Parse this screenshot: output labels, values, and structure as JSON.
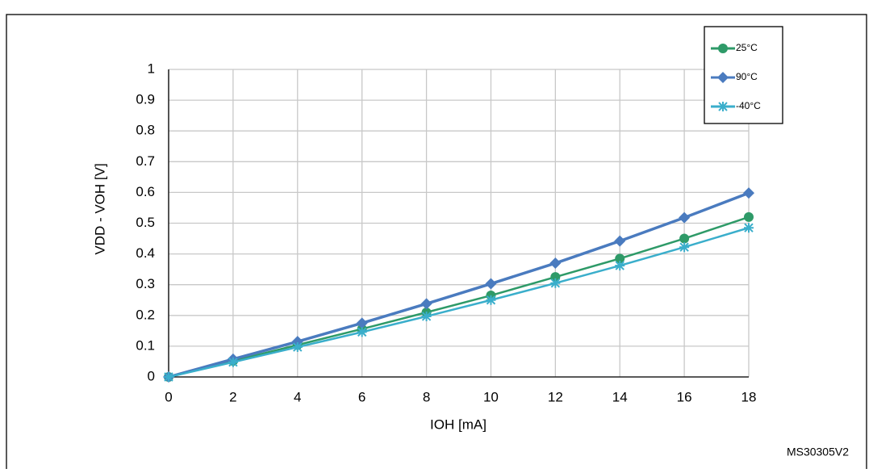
{
  "chart_data": {
    "type": "line",
    "xlabel": "IOH [mA]",
    "ylabel": "VDD - VOH [V]",
    "note": "MS30305V2",
    "x": [
      0,
      2,
      4,
      6,
      8,
      10,
      12,
      14,
      16,
      18
    ],
    "series": [
      {
        "name": "25°C",
        "color": "#2e9a68",
        "marker": "circle",
        "values": [
          0,
          0.052,
          0.104,
          0.156,
          0.21,
          0.265,
          0.325,
          0.385,
          0.45,
          0.52
        ]
      },
      {
        "name": "90°C",
        "color": "#4a7bbf",
        "marker": "diamond",
        "values": [
          0,
          0.058,
          0.115,
          0.175,
          0.238,
          0.303,
          0.37,
          0.442,
          0.518,
          0.598
        ]
      },
      {
        "name": "-40°C",
        "color": "#3aaecb",
        "marker": "star",
        "values": [
          0,
          0.048,
          0.097,
          0.146,
          0.197,
          0.25,
          0.305,
          0.362,
          0.422,
          0.485
        ]
      }
    ],
    "xlim": [
      0,
      18
    ],
    "xticks": [
      0,
      2,
      4,
      6,
      8,
      10,
      12,
      14,
      16,
      18
    ],
    "ylim": [
      0,
      1
    ],
    "yticks": [
      0,
      0.1,
      0.2,
      0.3,
      0.4,
      0.5,
      0.6,
      0.7,
      0.8,
      0.9,
      1
    ],
    "grid": true,
    "legend": "upper right"
  }
}
